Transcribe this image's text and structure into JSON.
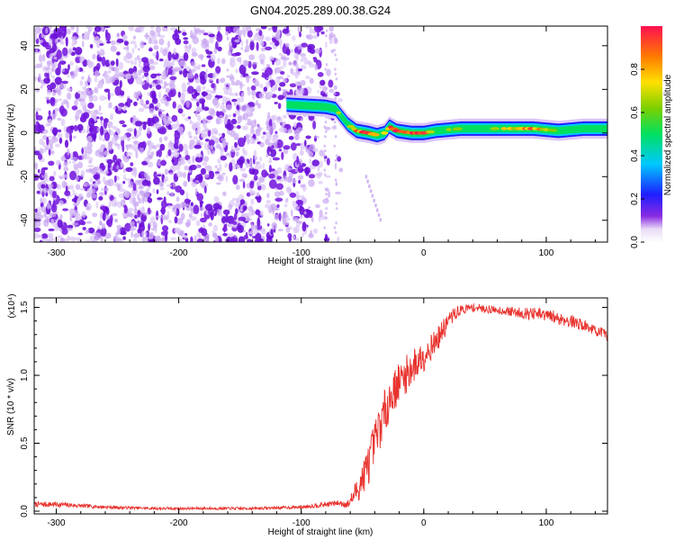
{
  "figure": {
    "title": "GN04.2025.289.00.38.G24"
  },
  "chart_data": [
    {
      "type": "heatmap",
      "xlabel": "Height of straight line (km)",
      "ylabel": "Frequency (Hz)",
      "xlim": [
        -318,
        150
      ],
      "ylim": [
        -50,
        49
      ],
      "xticks": [
        -300,
        -200,
        -100,
        0,
        100
      ],
      "yticks": [
        -40,
        -20,
        0,
        20,
        40
      ],
      "grid": false,
      "noise_region_x": [
        -318,
        -65
      ],
      "ridge": {
        "x": [
          -112,
          -80,
          -72,
          -62,
          -55,
          -45,
          -38,
          -32,
          -28,
          -22,
          -10,
          0,
          10,
          30,
          60,
          90,
          110,
          130,
          150
        ],
        "frequency": [
          13,
          12,
          11,
          4,
          1,
          0,
          -1,
          0,
          3,
          1,
          0,
          0,
          1,
          2,
          2,
          2,
          1,
          2,
          2
        ],
        "amplitude": [
          0.45,
          0.5,
          0.6,
          0.55,
          0.85,
          0.9,
          0.7,
          0.75,
          0.95,
          0.9,
          0.95,
          0.9,
          0.6,
          0.55,
          0.6,
          0.85,
          0.55,
          0.5,
          0.45
        ]
      },
      "colorbar": {
        "label": "Normalized spectral amplitude",
        "range": [
          0,
          1
        ],
        "ticks": [
          0.0,
          0.2,
          0.4,
          0.6,
          0.8
        ],
        "tick_labels": [
          "0.0",
          "0.2",
          "0.4",
          "0.6",
          "0.8"
        ]
      }
    },
    {
      "type": "line",
      "xlabel": "Height of straight line (km)",
      "ylabel": "SNR (10 * v/v)",
      "yscale_note": "(x10⁴)",
      "xlim": [
        -318,
        150
      ],
      "ylim": [
        -0.02,
        1.57
      ],
      "xticks": [
        -300,
        -200,
        -100,
        0,
        100
      ],
      "yticks": [
        0.0,
        0.5,
        1.0,
        1.5
      ],
      "ytick_labels": [
        "0.0",
        "0.5",
        "1.0",
        "1.5"
      ],
      "grid": false,
      "color": "#e8332e",
      "series": [
        {
          "x": [
            -318,
            -300,
            -280,
            -260,
            -240,
            -220,
            -200,
            -180,
            -160,
            -140,
            -120,
            -100,
            -90,
            -80,
            -70,
            -62,
            -58,
            -52,
            -45,
            -40,
            -35,
            -30,
            -25,
            -20,
            -15,
            -10,
            -5,
            0,
            5,
            10,
            15,
            20,
            25,
            30,
            40,
            50,
            60,
            70,
            80,
            90,
            100,
            110,
            120,
            130,
            140,
            150
          ],
          "values": [
            0.05,
            0.05,
            0.04,
            0.03,
            0.025,
            0.02,
            0.02,
            0.02,
            0.02,
            0.02,
            0.025,
            0.03,
            0.04,
            0.05,
            0.06,
            0.05,
            0.1,
            0.2,
            0.35,
            0.5,
            0.65,
            0.78,
            0.88,
            0.95,
            1.0,
            1.05,
            1.1,
            1.15,
            1.2,
            1.25,
            1.32,
            1.4,
            1.45,
            1.48,
            1.5,
            1.49,
            1.48,
            1.47,
            1.46,
            1.45,
            1.44,
            1.42,
            1.4,
            1.37,
            1.33,
            1.29
          ],
          "noise": [
            0.02,
            0.02,
            0.015,
            0.012,
            0.01,
            0.01,
            0.01,
            0.01,
            0.01,
            0.01,
            0.01,
            0.012,
            0.015,
            0.02,
            0.02,
            0.03,
            0.06,
            0.12,
            0.15,
            0.17,
            0.17,
            0.16,
            0.15,
            0.15,
            0.14,
            0.14,
            0.13,
            0.12,
            0.1,
            0.09,
            0.08,
            0.07,
            0.05,
            0.04,
            0.03,
            0.03,
            0.03,
            0.035,
            0.04,
            0.05,
            0.05,
            0.05,
            0.05,
            0.04,
            0.04,
            0.04
          ]
        }
      ]
    }
  ]
}
